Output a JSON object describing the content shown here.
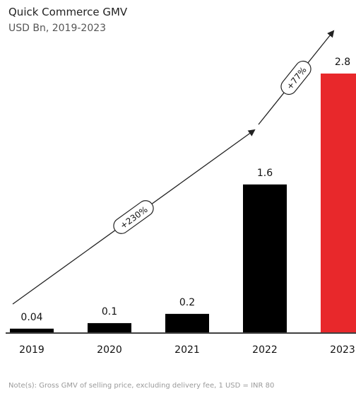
{
  "chart_data": {
    "type": "bar",
    "title": "Quick Commerce GMV",
    "subtitle": "USD Bn, 2019-2023",
    "categories": [
      "2019",
      "2020",
      "2021",
      "2022",
      "2023"
    ],
    "values": [
      0.04,
      0.1,
      0.2,
      1.6,
      2.8
    ],
    "value_labels": [
      "0.04",
      "0.1",
      "0.2",
      "1.6",
      "2.8"
    ],
    "ylim": [
      0,
      2.8
    ],
    "grid": false,
    "legend": "none",
    "bar_colors": [
      "#000000",
      "#000000",
      "#000000",
      "#000000",
      "#e8282b"
    ],
    "annotations": [
      {
        "text": "+230%",
        "from": "2019",
        "to": "2022"
      },
      {
        "text": "+77%",
        "from": "2022",
        "to": "2023"
      }
    ],
    "note": "Note(s): Gross GMV of selling price, excluding delivery fee, 1 USD = INR 80"
  }
}
